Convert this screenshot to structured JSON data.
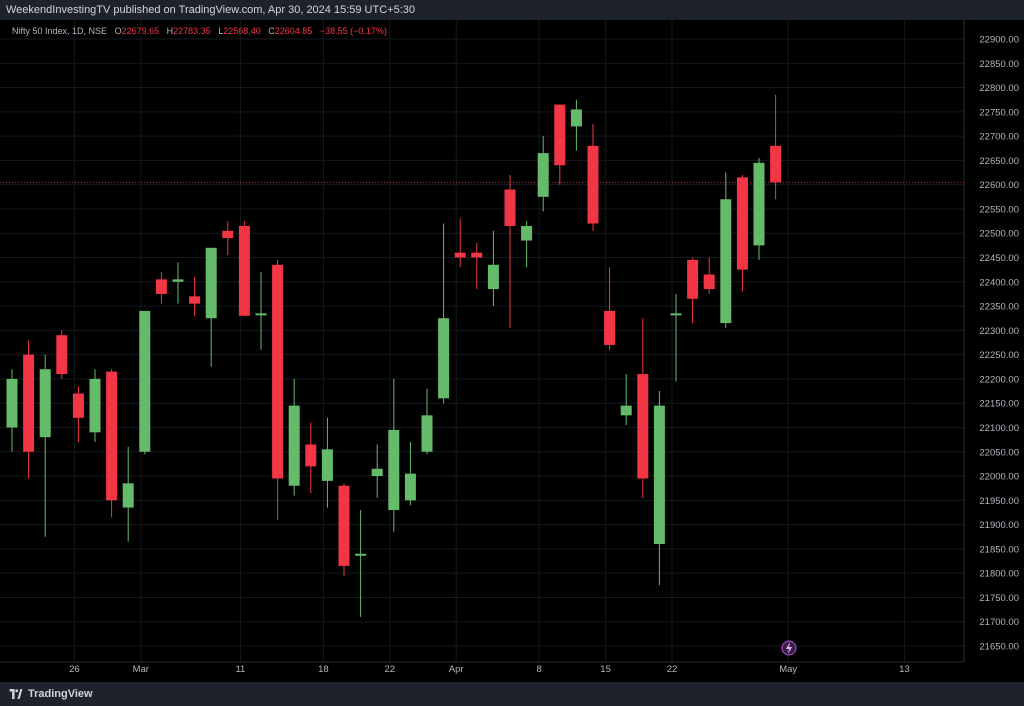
{
  "header": {
    "publisher_line": "WeekendInvestingTV published on TradingView.com, Apr 30, 2024 15:59 UTC+5:30"
  },
  "legend": {
    "symbol": "Nifty 50 Index, 1D, NSE",
    "o_label": "O",
    "o_value": "22679.65",
    "h_label": "H",
    "h_value": "22783.35",
    "l_label": "L",
    "l_value": "22568.40",
    "c_label": "C",
    "c_value": "22604.85",
    "change": "−38.55 (−0.17%)"
  },
  "footer": {
    "brand": "TradingView"
  },
  "colors": {
    "up": "#66bb6a",
    "down": "#f23645",
    "grid": "#141821",
    "axis_text": "#b2b5be",
    "last_price_line": "#f23645"
  },
  "chart_data": {
    "type": "candlestick",
    "y_axis": {
      "ylim": [
        21600,
        22925
      ],
      "ticks": [
        21650,
        21700,
        21750,
        21800,
        21850,
        21900,
        21950,
        22000,
        22050,
        22100,
        22150,
        22200,
        22250,
        22300,
        22350,
        22400,
        22450,
        22500,
        22550,
        22600,
        22650,
        22700,
        22750,
        22800,
        22850,
        22900
      ],
      "tick_labels": [
        "21650.00",
        "21700.00",
        "21750.00",
        "21800.00",
        "21850.00",
        "21900.00",
        "21950.00",
        "22000.00",
        "22050.00",
        "22100.00",
        "22150.00",
        "22200.00",
        "22250.00",
        "22300.00",
        "22350.00",
        "22400.00",
        "22450.00",
        "22500.00",
        "22550.00",
        "22600.00",
        "22650.00",
        "22700.00",
        "22750.00",
        "22800.00",
        "22850.00",
        "22900.00"
      ],
      "side": "right"
    },
    "x_axis": {
      "ticks": [
        {
          "bar": 4,
          "label": "26"
        },
        {
          "bar": 8,
          "label": "Mar"
        },
        {
          "bar": 14,
          "label": "11"
        },
        {
          "bar": 19,
          "label": "18"
        },
        {
          "bar": 23,
          "label": "22"
        },
        {
          "bar": 27,
          "label": "Apr"
        },
        {
          "bar": 32,
          "label": "8"
        },
        {
          "bar": 36,
          "label": "15"
        },
        {
          "bar": 40,
          "label": "22"
        },
        {
          "bar": 47,
          "label": "May"
        },
        {
          "bar": 54,
          "label": "13"
        }
      ]
    },
    "last_price": 22604.85,
    "candles": [
      {
        "o": 22100,
        "h": 22220,
        "l": 22050,
        "c": 22200
      },
      {
        "o": 22250,
        "h": 22280,
        "l": 21995,
        "c": 22050
      },
      {
        "o": 22080,
        "h": 22250,
        "l": 21875,
        "c": 22220
      },
      {
        "o": 22290,
        "h": 22300,
        "l": 22200,
        "c": 22210
      },
      {
        "o": 22170,
        "h": 22185,
        "l": 22070,
        "c": 22120
      },
      {
        "o": 22090,
        "h": 22220,
        "l": 22070,
        "c": 22200
      },
      {
        "o": 22215,
        "h": 22220,
        "l": 21915,
        "c": 21950
      },
      {
        "o": 21935,
        "h": 22060,
        "l": 21865,
        "c": 21985
      },
      {
        "o": 22050,
        "h": 22340,
        "l": 22045,
        "c": 22340
      },
      {
        "o": 22405,
        "h": 22420,
        "l": 22355,
        "c": 22375
      },
      {
        "o": 22400,
        "h": 22440,
        "l": 22355,
        "c": 22405
      },
      {
        "o": 22370,
        "h": 22410,
        "l": 22330,
        "c": 22355
      },
      {
        "o": 22325,
        "h": 22470,
        "l": 22225,
        "c": 22470
      },
      {
        "o": 22505,
        "h": 22525,
        "l": 22455,
        "c": 22490
      },
      {
        "o": 22515,
        "h": 22525,
        "l": 22330,
        "c": 22330
      },
      {
        "o": 22335,
        "h": 22420,
        "l": 22260,
        "c": 22335
      },
      {
        "o": 22435,
        "h": 22445,
        "l": 21910,
        "c": 21995
      },
      {
        "o": 21980,
        "h": 22200,
        "l": 21960,
        "c": 22145
      },
      {
        "o": 22065,
        "h": 22110,
        "l": 21965,
        "c": 22020
      },
      {
        "o": 21990,
        "h": 22120,
        "l": 21935,
        "c": 22055
      },
      {
        "o": 21980,
        "h": 21985,
        "l": 21795,
        "c": 21815
      },
      {
        "o": 21840,
        "h": 21930,
        "l": 21710,
        "c": 21840
      },
      {
        "o": 22000,
        "h": 22065,
        "l": 21955,
        "c": 22015
      },
      {
        "o": 21930,
        "h": 22200,
        "l": 21885,
        "c": 22095
      },
      {
        "o": 21950,
        "h": 22070,
        "l": 21940,
        "c": 22005
      },
      {
        "o": 22050,
        "h": 22180,
        "l": 22045,
        "c": 22125
      },
      {
        "o": 22160,
        "h": 22520,
        "l": 22150,
        "c": 22325
      },
      {
        "o": 22460,
        "h": 22530,
        "l": 22430,
        "c": 22450
      },
      {
        "o": 22460,
        "h": 22480,
        "l": 22385,
        "c": 22450
      },
      {
        "o": 22385,
        "h": 22505,
        "l": 22350,
        "c": 22435
      },
      {
        "o": 22590,
        "h": 22620,
        "l": 22305,
        "c": 22515
      },
      {
        "o": 22485,
        "h": 22525,
        "l": 22430,
        "c": 22515
      },
      {
        "o": 22575,
        "h": 22700,
        "l": 22545,
        "c": 22665
      },
      {
        "o": 22765,
        "h": 22765,
        "l": 22600,
        "c": 22640
      },
      {
        "o": 22720,
        "h": 22775,
        "l": 22670,
        "c": 22755
      },
      {
        "o": 22680,
        "h": 22725,
        "l": 22505,
        "c": 22520
      },
      {
        "o": 22340,
        "h": 22430,
        "l": 22260,
        "c": 22270
      },
      {
        "o": 22125,
        "h": 22210,
        "l": 22105,
        "c": 22145
      },
      {
        "o": 22210,
        "h": 22325,
        "l": 21955,
        "c": 21995
      },
      {
        "o": 21860,
        "h": 22175,
        "l": 21775,
        "c": 22145
      },
      {
        "o": 22335,
        "h": 22375,
        "l": 22195,
        "c": 22335
      },
      {
        "o": 22445,
        "h": 22450,
        "l": 22315,
        "c": 22365
      },
      {
        "o": 22415,
        "h": 22450,
        "l": 22375,
        "c": 22385
      },
      {
        "o": 22315,
        "h": 22625,
        "l": 22305,
        "c": 22570
      },
      {
        "o": 22615,
        "h": 22620,
        "l": 22380,
        "c": 22425
      },
      {
        "o": 22475,
        "h": 22655,
        "l": 22445,
        "c": 22645
      },
      {
        "o": 22680,
        "h": 22785,
        "l": 22570,
        "c": 22605
      }
    ]
  }
}
